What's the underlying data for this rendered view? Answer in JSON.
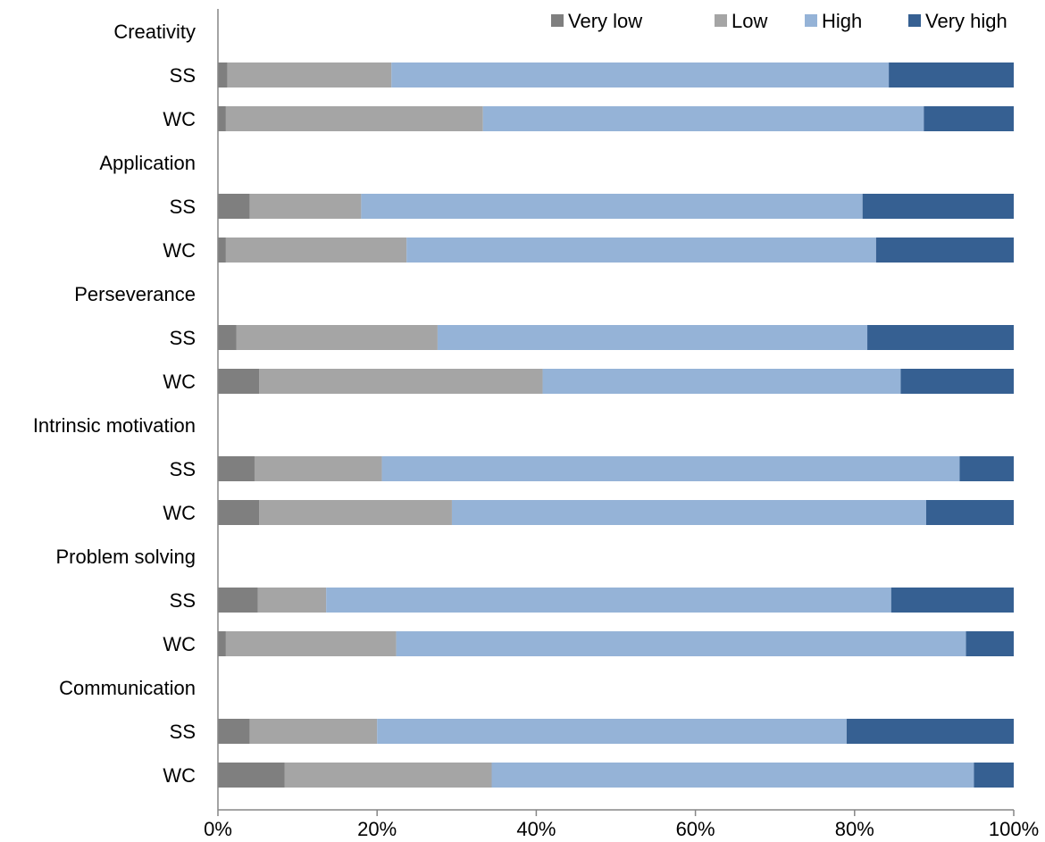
{
  "chart_data": {
    "type": "bar",
    "orientation": "horizontal",
    "stacked": "percent",
    "title": "",
    "xlabel": "",
    "ylabel": "",
    "xlim": [
      0,
      100
    ],
    "x_ticks": [
      "0%",
      "20%",
      "40%",
      "60%",
      "80%",
      "100%"
    ],
    "grid": false,
    "legend_position": "top-right",
    "rows": [
      {
        "label": "Creativity",
        "header": true
      },
      {
        "label": "SS",
        "values": [
          1.2,
          20.6,
          62.5,
          15.7
        ]
      },
      {
        "label": "WC",
        "values": [
          1.0,
          32.3,
          55.4,
          11.3
        ]
      },
      {
        "label": "Application",
        "header": true
      },
      {
        "label": "SS",
        "values": [
          4.0,
          14.0,
          63.0,
          19.0
        ]
      },
      {
        "label": "WC",
        "values": [
          1.0,
          22.7,
          59.0,
          17.3
        ]
      },
      {
        "label": "Perseverance",
        "header": true
      },
      {
        "label": "SS",
        "values": [
          2.3,
          25.3,
          54.0,
          18.4
        ]
      },
      {
        "label": "WC",
        "values": [
          5.2,
          35.6,
          45.0,
          14.2
        ]
      },
      {
        "label": "Intrinsic motivation",
        "header": true
      },
      {
        "label": "SS",
        "values": [
          4.6,
          16.0,
          72.6,
          6.8
        ]
      },
      {
        "label": "WC",
        "values": [
          5.2,
          24.2,
          59.6,
          11.0
        ]
      },
      {
        "label": "Problem solving",
        "header": true
      },
      {
        "label": "SS",
        "values": [
          5.0,
          8.6,
          71.0,
          15.4
        ]
      },
      {
        "label": "WC",
        "values": [
          1.0,
          21.4,
          71.6,
          6.0
        ]
      },
      {
        "label": "Communication",
        "header": true
      },
      {
        "label": "SS",
        "values": [
          4.0,
          16.0,
          59.0,
          21.0
        ]
      },
      {
        "label": "WC",
        "values": [
          8.4,
          26.0,
          60.6,
          5.0
        ]
      }
    ],
    "series": [
      {
        "name": "Very low",
        "color": "#7f7f7f"
      },
      {
        "name": "Low",
        "color": "#a5a5a5"
      },
      {
        "name": "High",
        "color": "#95b3d7"
      },
      {
        "name": "Very high",
        "color": "#366092"
      }
    ]
  }
}
